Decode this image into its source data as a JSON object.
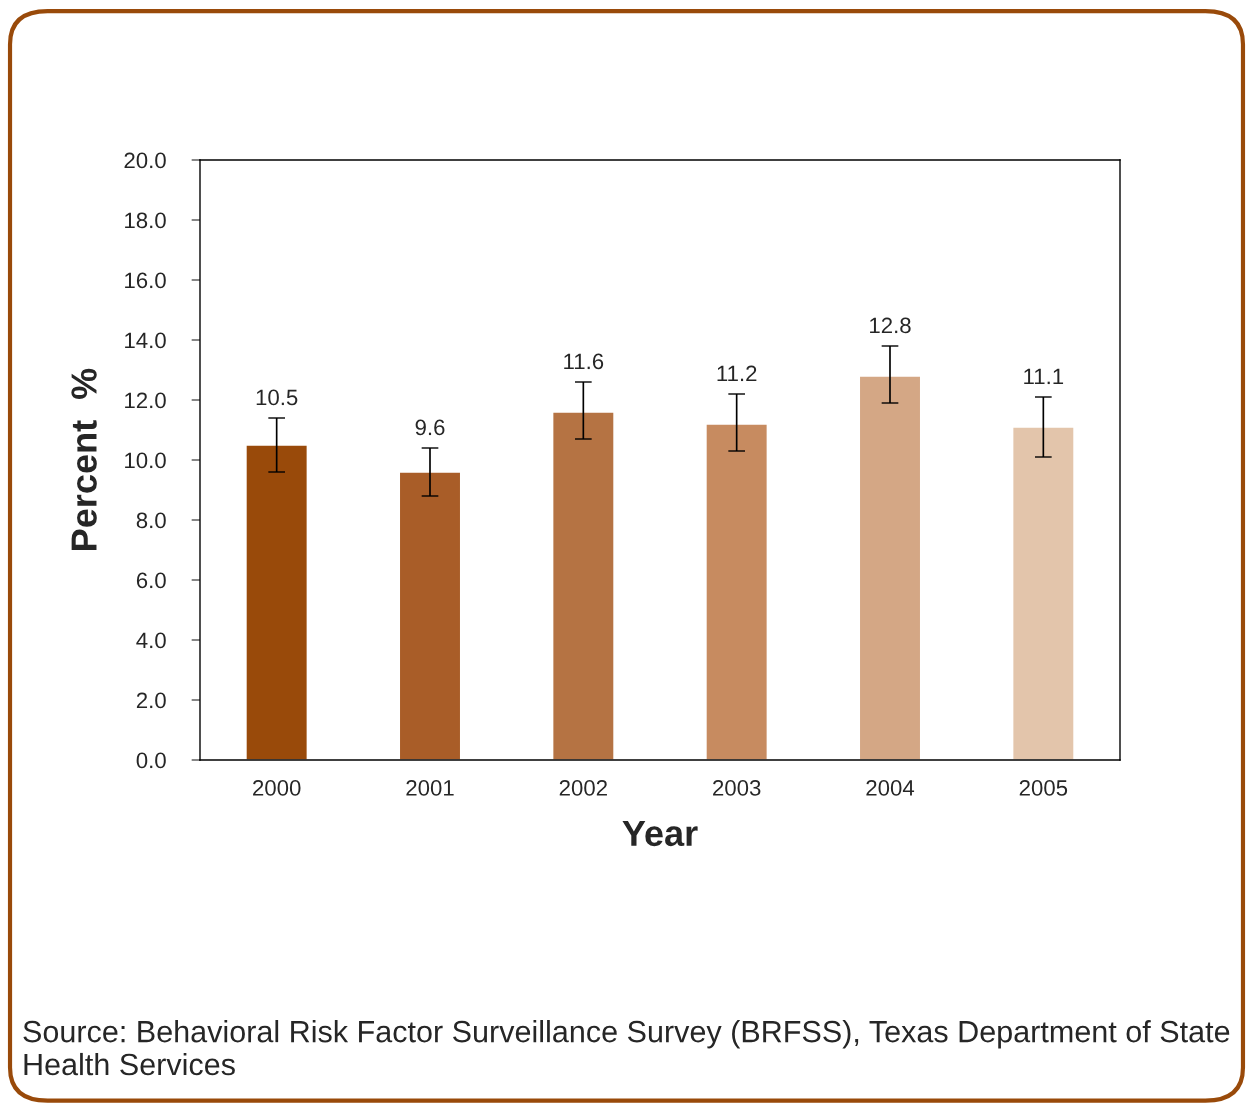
{
  "chart_data": {
    "type": "bar",
    "xlabel": "Year",
    "ylabel": "Percent  %",
    "categories": [
      "2000",
      "2001",
      "2002",
      "2003",
      "2004",
      "2005"
    ],
    "values": [
      10.5,
      9.6,
      11.6,
      11.2,
      12.8,
      11.1
    ],
    "colors": [
      "#994a0a",
      "#a95d28",
      "#b57343",
      "#c78b60",
      "#d4a785",
      "#e3c5ab"
    ],
    "errors": [
      [
        9.6,
        11.4
      ],
      [
        8.8,
        10.4
      ],
      [
        10.7,
        12.6
      ],
      [
        10.3,
        12.2
      ],
      [
        11.9,
        13.8
      ],
      [
        10.1,
        12.1
      ]
    ],
    "data_labels": true,
    "ylim": [
      0,
      20
    ],
    "yticks": [
      {
        "value": 0,
        "label": "0.0"
      },
      {
        "value": 2,
        "label": "2.0"
      },
      {
        "value": 4,
        "label": "4.0"
      },
      {
        "value": 6,
        "label": "6.0"
      },
      {
        "value": 8,
        "label": "8.0"
      },
      {
        "value": 10,
        "label": "10.0"
      },
      {
        "value": 12,
        "label": "12.0"
      },
      {
        "value": 14,
        "label": "14.0"
      },
      {
        "value": 16,
        "label": "16.0"
      },
      {
        "value": 18,
        "label": "18.0"
      },
      {
        "value": 20,
        "label": "20.0"
      }
    ],
    "grid": false,
    "annotations": [
      "Source: Behavioral Risk Factor Surveillance Survey (BRFSS), Texas Department of State Health Services"
    ]
  }
}
